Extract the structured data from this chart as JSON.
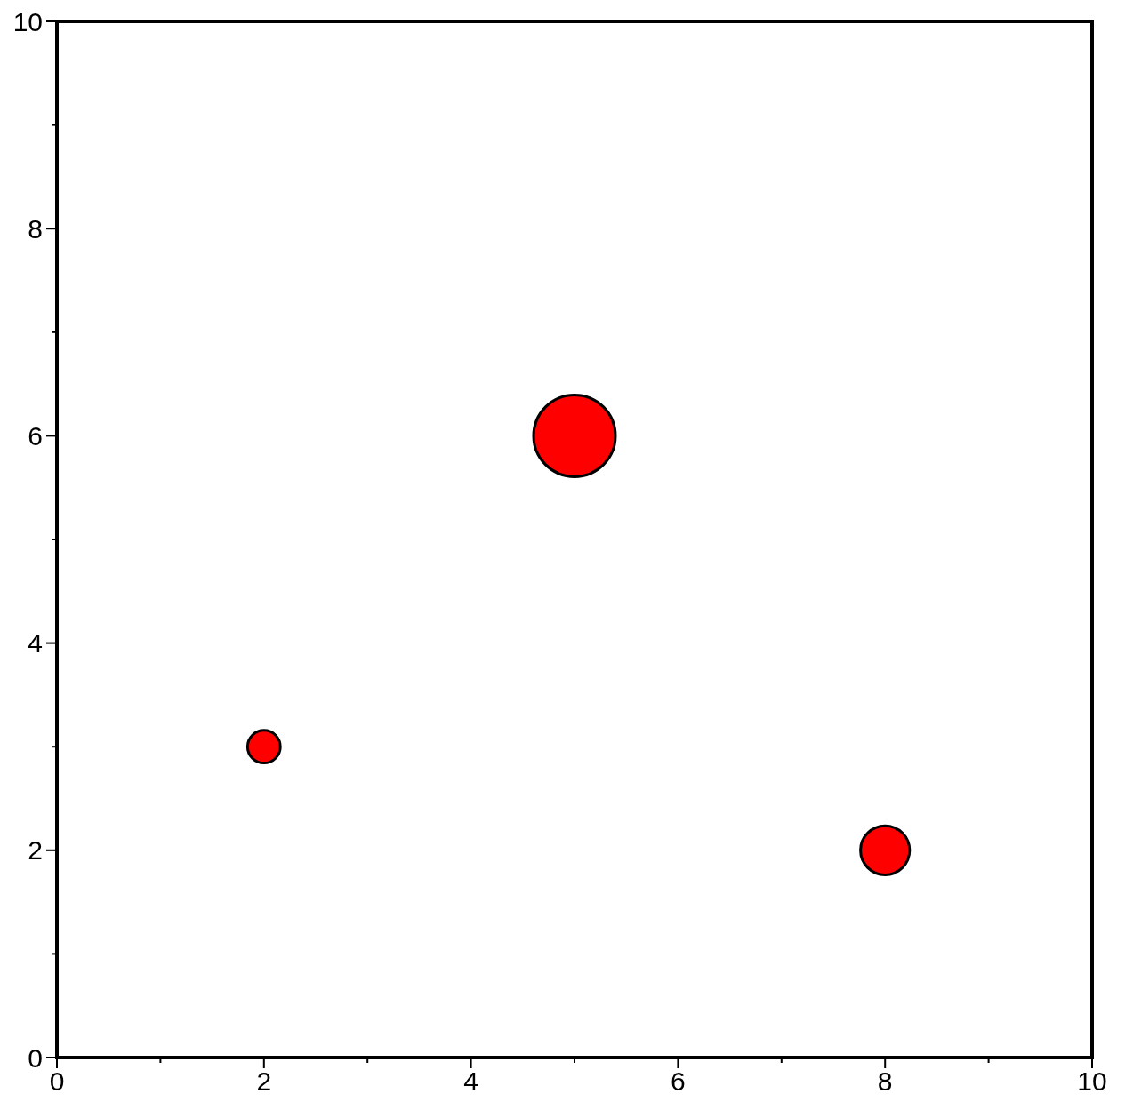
{
  "chart_data": {
    "type": "bubble",
    "x": [
      2,
      5,
      8
    ],
    "values": [
      3,
      6,
      2
    ],
    "sizes": [
      0.16,
      1,
      0.36
    ],
    "color": "#ff0000",
    "xlim": [
      0,
      10
    ],
    "ylim": [
      0,
      10
    ],
    "xticks": [
      0,
      {
        "value": 1,
        "label": null
      },
      2,
      {
        "value": 3,
        "label": null
      },
      4,
      {
        "value": 5,
        "label": null
      },
      6,
      {
        "value": 7,
        "label": null
      },
      8,
      {
        "value": 9,
        "label": null
      },
      10
    ],
    "yticks": [
      0,
      {
        "value": 1,
        "label": null
      },
      2,
      {
        "value": 3,
        "label": null
      },
      4,
      {
        "value": 5,
        "label": null
      },
      6,
      {
        "value": 7,
        "label": null
      },
      8,
      {
        "value": 9,
        "label": null
      },
      10
    ],
    "grid": false,
    "marker": "circle"
  }
}
